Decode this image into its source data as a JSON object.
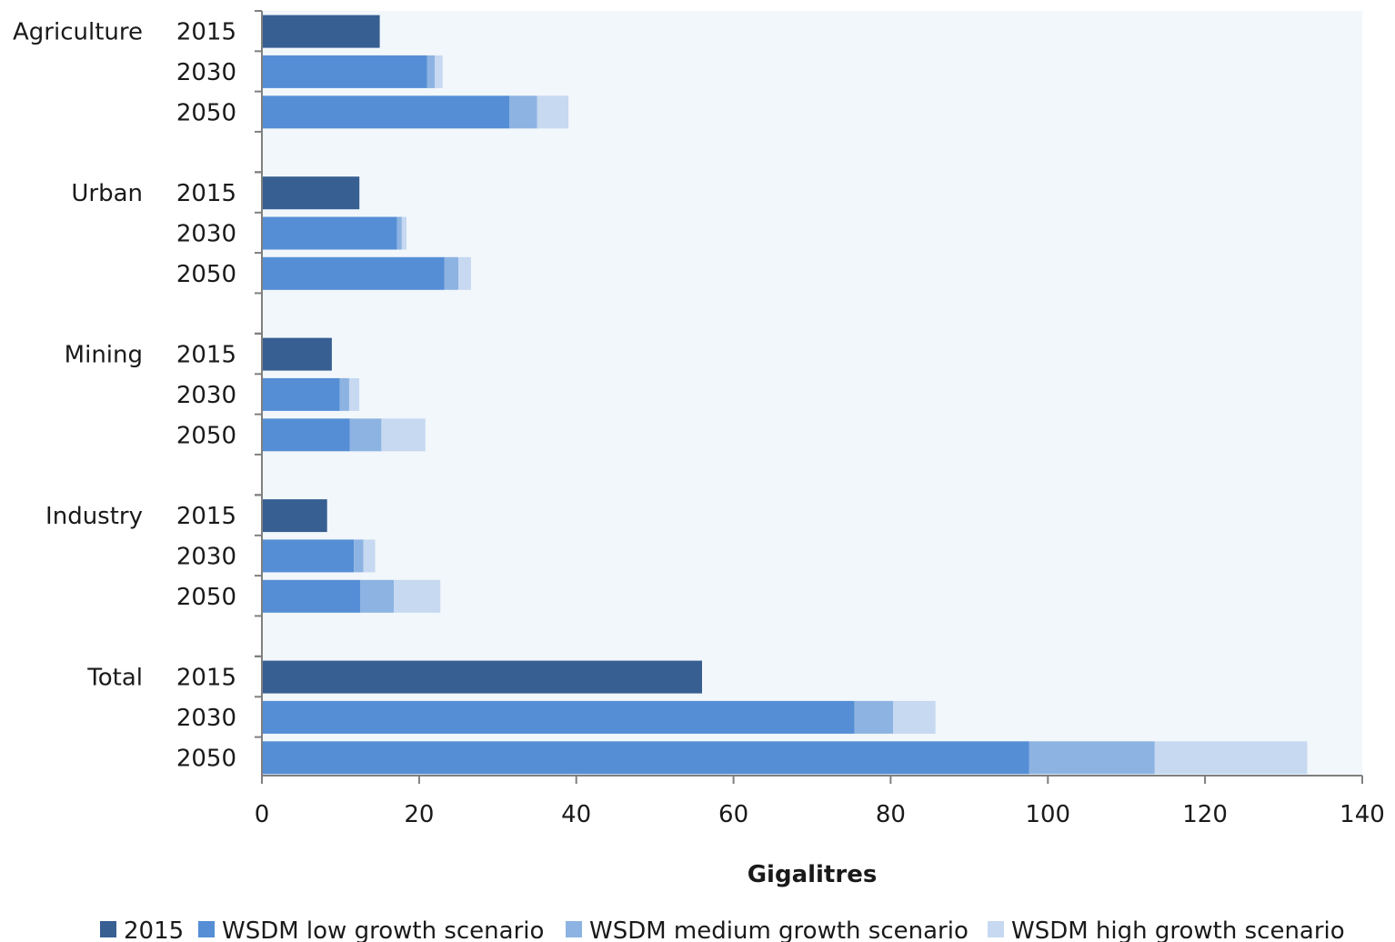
{
  "chart_data": {
    "type": "bar",
    "orientation": "horizontal",
    "stacked": true,
    "xlabel": "Gigalitres",
    "xlim": [
      0,
      140
    ],
    "xticks": [
      0,
      20,
      40,
      60,
      80,
      100,
      120,
      140
    ],
    "grid": false,
    "legend_position": "bottom",
    "colors": {
      "plot_background": "#f2f7fb",
      "series": [
        "#375f92",
        "#558ed5",
        "#8db3e2",
        "#c6d9f1"
      ]
    },
    "series": [
      {
        "name": "2015"
      },
      {
        "name": "WSDM low growth scenario"
      },
      {
        "name": "WSDM medium growth scenario"
      },
      {
        "name": "WSDM high growth scenario"
      }
    ],
    "groups": [
      {
        "name": "Agriculture",
        "rows": [
          {
            "year": "2015",
            "segments": [
              15.0,
              0,
              0,
              0
            ]
          },
          {
            "year": "2030",
            "segments": [
              0,
              21.0,
              1.0,
              1.0
            ]
          },
          {
            "year": "2050",
            "segments": [
              0,
              31.5,
              3.5,
              4.0
            ]
          }
        ]
      },
      {
        "name": "Urban",
        "rows": [
          {
            "year": "2015",
            "segments": [
              12.4,
              0,
              0,
              0
            ]
          },
          {
            "year": "2030",
            "segments": [
              0,
              17.2,
              0.6,
              0.6
            ]
          },
          {
            "year": "2050",
            "segments": [
              0,
              23.2,
              1.8,
              1.6
            ]
          }
        ]
      },
      {
        "name": "Mining",
        "rows": [
          {
            "year": "2015",
            "segments": [
              8.9,
              0,
              0,
              0
            ]
          },
          {
            "year": "2030",
            "segments": [
              0,
              9.9,
              1.2,
              1.3
            ]
          },
          {
            "year": "2050",
            "segments": [
              0,
              11.2,
              4.0,
              5.6
            ]
          }
        ]
      },
      {
        "name": "Industry",
        "rows": [
          {
            "year": "2015",
            "segments": [
              8.3,
              0,
              0,
              0
            ]
          },
          {
            "year": "2030",
            "segments": [
              0,
              11.7,
              1.2,
              1.5
            ]
          },
          {
            "year": "2050",
            "segments": [
              0,
              12.5,
              4.3,
              5.9
            ]
          }
        ]
      },
      {
        "name": "Total",
        "rows": [
          {
            "year": "2015",
            "segments": [
              56.0,
              0,
              0,
              0
            ]
          },
          {
            "year": "2030",
            "segments": [
              0,
              75.4,
              4.9,
              5.4
            ]
          },
          {
            "year": "2050",
            "segments": [
              0,
              97.6,
              16.0,
              19.4
            ]
          }
        ]
      }
    ]
  }
}
